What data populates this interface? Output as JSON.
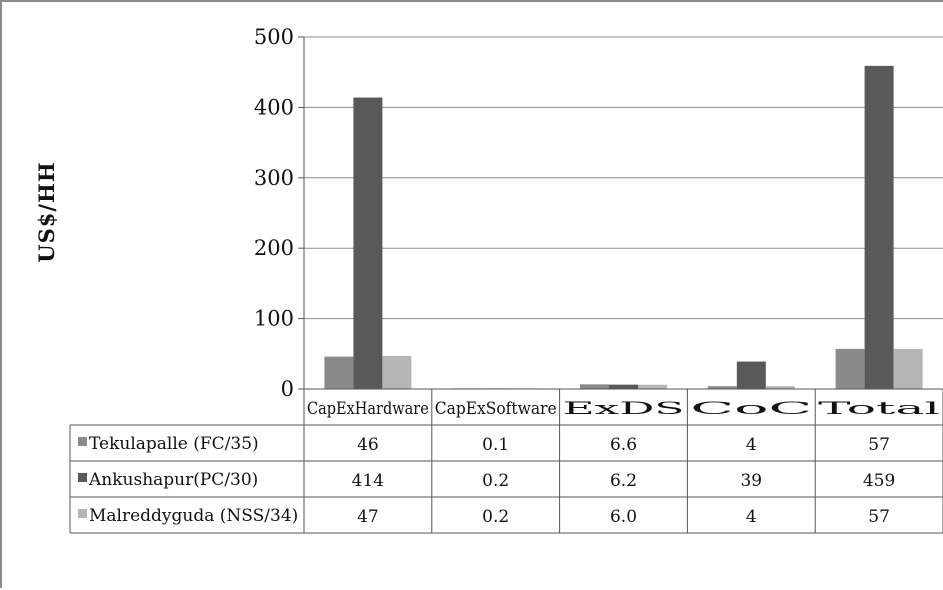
{
  "chart_data": {
    "type": "bar",
    "ylabel": "US$/HH",
    "ylim": [
      0,
      500
    ],
    "yticks": [
      "0",
      "100",
      "200",
      "300",
      "400",
      "500"
    ],
    "grid": true,
    "categories": [
      "CapExHardware",
      "CapExSoftware",
      "ExDS",
      "CoC",
      "Total"
    ],
    "series": [
      {
        "name": "Tekulapalle (FC/35)",
        "color": "#8a8a8a",
        "values": [
          46,
          0.1,
          6.6,
          4,
          57
        ],
        "labels": [
          "46",
          "0.1",
          "6.6",
          "4",
          "57"
        ]
      },
      {
        "name": "Ankushapur(PC/30)",
        "color": "#595959",
        "values": [
          414,
          0.2,
          6.2,
          39,
          459
        ],
        "labels": [
          "414",
          "0.2",
          "6.2",
          "39",
          "459"
        ]
      },
      {
        "name": "Malreddyguda (NSS/34)",
        "color": "#b5b5b5",
        "values": [
          47,
          0.2,
          6.0,
          4,
          57
        ],
        "labels": [
          "47",
          "0.2",
          "6.0",
          "4",
          "57"
        ]
      }
    ]
  }
}
